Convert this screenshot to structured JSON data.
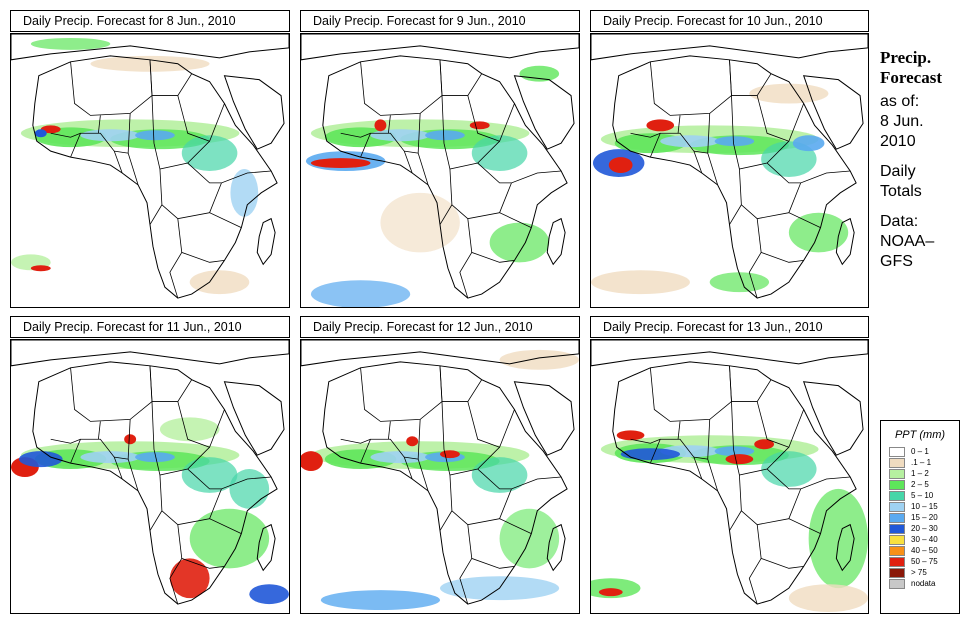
{
  "panels": [
    {
      "title": "Daily Precip. Forecast for  8 Jun., 2010"
    },
    {
      "title": "Daily Precip. Forecast for  9 Jun., 2010"
    },
    {
      "title": "Daily Precip. Forecast for  10 Jun., 2010"
    },
    {
      "title": "Daily Precip. Forecast for  11 Jun., 2010"
    },
    {
      "title": "Daily Precip. Forecast for  12 Jun., 2010"
    },
    {
      "title": "Daily Precip. Forecast for  13 Jun., 2010"
    }
  ],
  "sidebar": {
    "heading1": "Precip.",
    "heading2": "Forecast",
    "asof": "as of:",
    "date1": "8 Jun.",
    "date2": "2010",
    "daily1": "Daily",
    "daily2": "Totals",
    "data1": "Data:",
    "data2": "NOAA–",
    "data3": "GFS"
  },
  "legend": {
    "title": "PPT (mm)",
    "items": [
      {
        "label": "0 – 1",
        "color": "#ffffff"
      },
      {
        "label": ".1 – 1",
        "color": "#f0dcc0"
      },
      {
        "label": "1 – 2",
        "color": "#b6f0a0"
      },
      {
        "label": "2 – 5",
        "color": "#5ee65a"
      },
      {
        "label": "5 – 10",
        "color": "#46d6a8"
      },
      {
        "label": "10 – 15",
        "color": "#9fd2f2"
      },
      {
        "label": "15 – 20",
        "color": "#5aaaf0"
      },
      {
        "label": "20 – 30",
        "color": "#2058d8"
      },
      {
        "label": "30 – 40",
        "color": "#f8e040"
      },
      {
        "label": "40 – 50",
        "color": "#f89018"
      },
      {
        "label": "50 – 75",
        "color": "#e02010"
      },
      {
        "label": "> 75",
        "color": "#8a1808"
      },
      {
        "label": "nodata",
        "color": "#c8c8c8"
      }
    ]
  }
}
